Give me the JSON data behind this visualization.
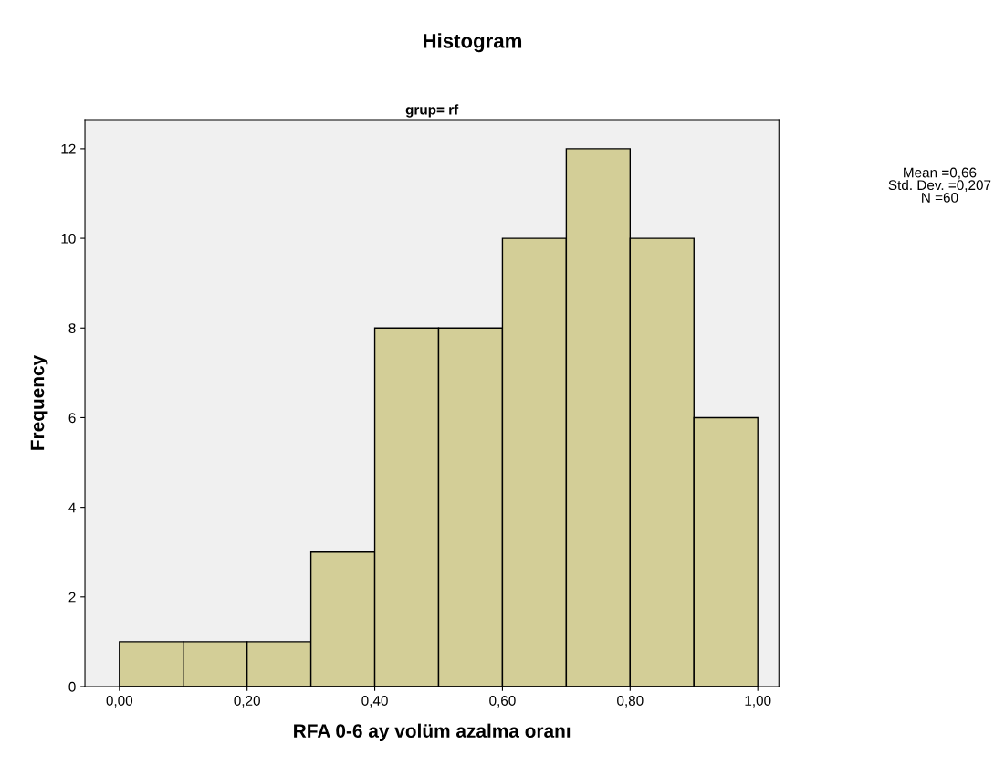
{
  "chart_data": {
    "type": "histogram",
    "title": "Histogram",
    "subtitle": "grup= rf",
    "xlabel": "RFA 0-6 ay volüm azalma oranı",
    "ylabel": "Frequency",
    "bins": [
      0,
      0.1,
      0.2,
      0.3,
      0.4,
      0.5,
      0.6,
      0.7,
      0.8,
      0.9,
      1.0
    ],
    "values": [
      1,
      1,
      1,
      3,
      8,
      8,
      10,
      12,
      10,
      6
    ],
    "color": "#d3ce97",
    "xlim": [
      -0.054,
      1.033
    ],
    "xticks": [
      {
        "value": 0,
        "label": "0,00"
      },
      {
        "value": 0.2,
        "label": "0,20"
      },
      {
        "value": 0.4,
        "label": "0,40"
      },
      {
        "value": 0.6,
        "label": "0,60"
      },
      {
        "value": 0.8,
        "label": "0,80"
      },
      {
        "value": 1.0,
        "label": "1,00"
      }
    ],
    "ylim": [
      0,
      12.65
    ],
    "yticks": [
      0,
      2,
      4,
      6,
      8,
      10,
      12
    ],
    "grid": false,
    "annotations": [
      "Mean =0,66\nStd. Dev. =0,207\nN =60"
    ]
  }
}
